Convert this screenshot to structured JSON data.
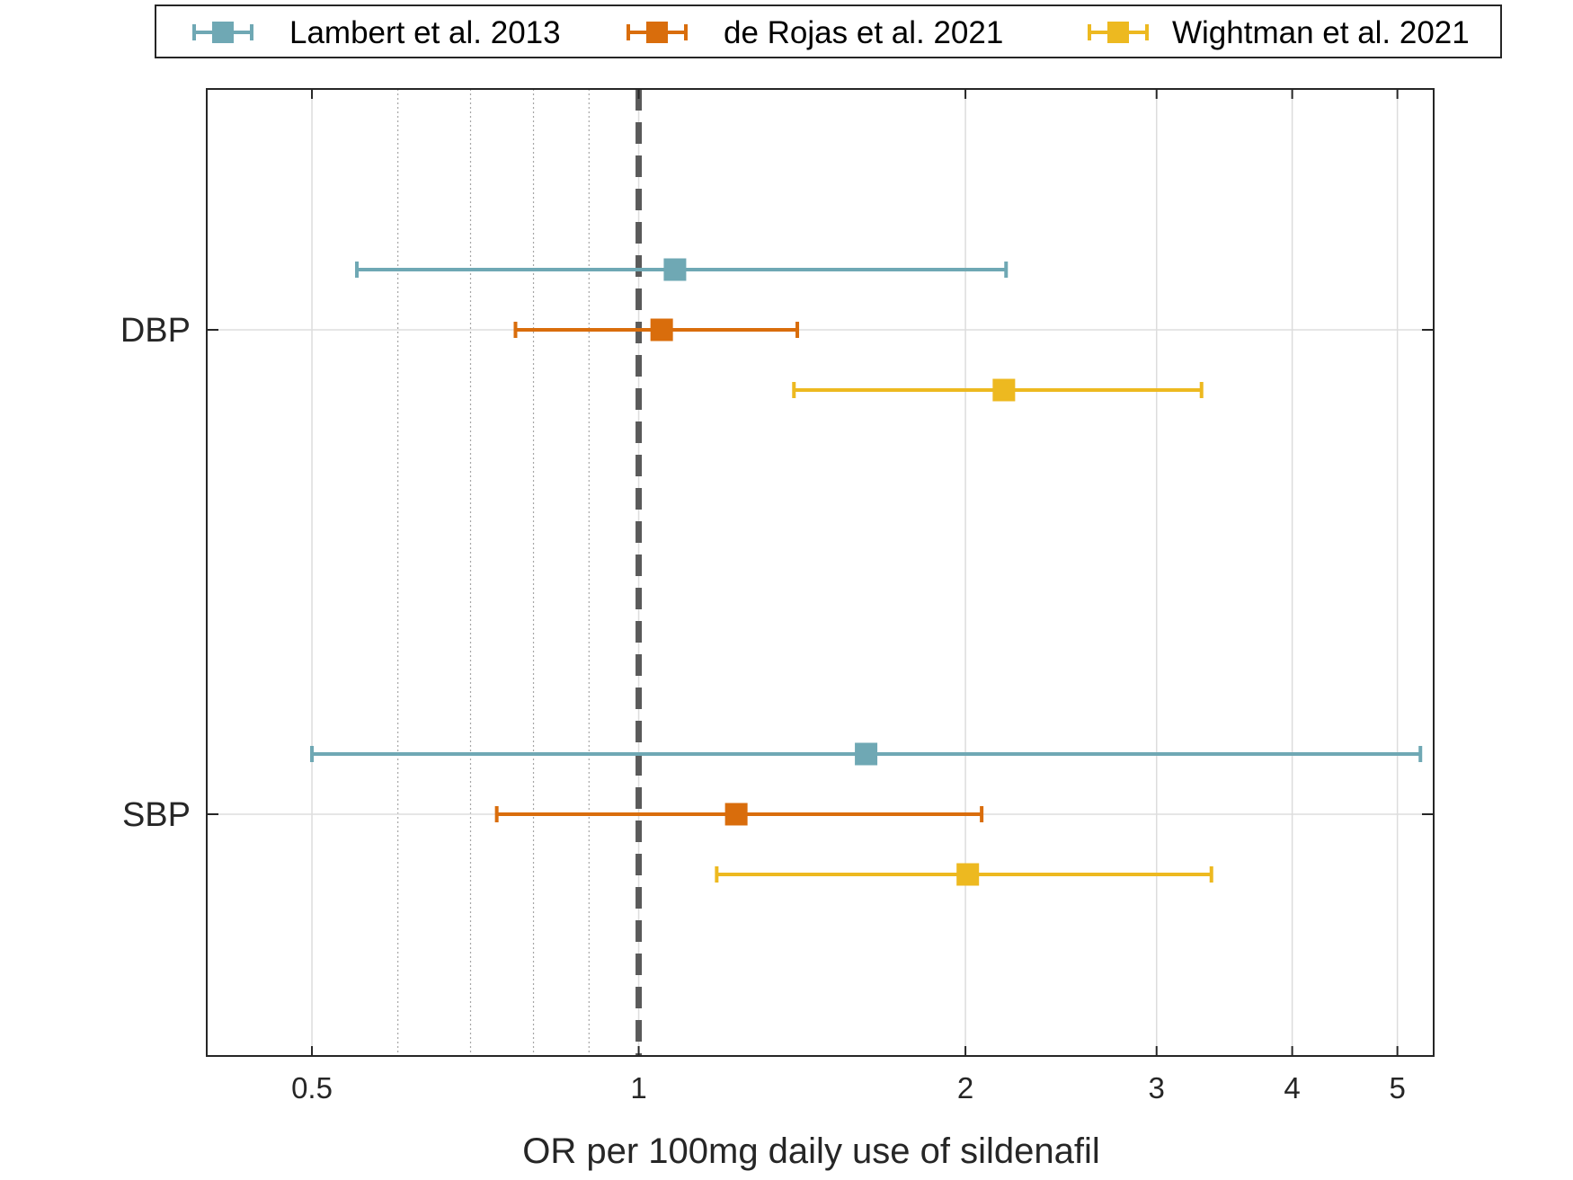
{
  "chart_data": {
    "type": "forest",
    "xlabel": "OR per 100mg daily use of sildenafil",
    "xscale": "log",
    "xlim": [
      0.4,
      5.4
    ],
    "xticks": [
      {
        "value": 0.5,
        "label": "0.5"
      },
      {
        "value": 1,
        "label": "1"
      },
      {
        "value": 2,
        "label": "2"
      },
      {
        "value": 3,
        "label": "3"
      },
      {
        "value": 4,
        "label": "4"
      },
      {
        "value": 5,
        "label": "5"
      }
    ],
    "minor_gridlines": [
      0.6,
      0.7,
      0.8,
      0.9
    ],
    "reference_line": 1,
    "categories": [
      "DBP",
      "SBP"
    ],
    "grid": true,
    "legend_position": "top",
    "series": [
      {
        "name": "Lambert et al. 2013",
        "color": "#6FA8B4",
        "points": [
          {
            "category": "DBP",
            "or": 1.08,
            "lower": 0.55,
            "upper": 2.18
          },
          {
            "category": "SBP",
            "or": 1.62,
            "lower": 0.5,
            "upper": 5.25
          }
        ]
      },
      {
        "name": "de Rojas et al. 2021",
        "color": "#D96D0C",
        "points": [
          {
            "category": "DBP",
            "or": 1.05,
            "lower": 0.77,
            "upper": 1.4
          },
          {
            "category": "SBP",
            "or": 1.23,
            "lower": 0.74,
            "upper": 2.07
          }
        ]
      },
      {
        "name": "Wightman et al. 2021",
        "color": "#EDB920",
        "points": [
          {
            "category": "DBP",
            "or": 2.17,
            "lower": 1.39,
            "upper": 3.3
          },
          {
            "category": "SBP",
            "or": 2.01,
            "lower": 1.18,
            "upper": 3.37
          }
        ]
      }
    ]
  }
}
